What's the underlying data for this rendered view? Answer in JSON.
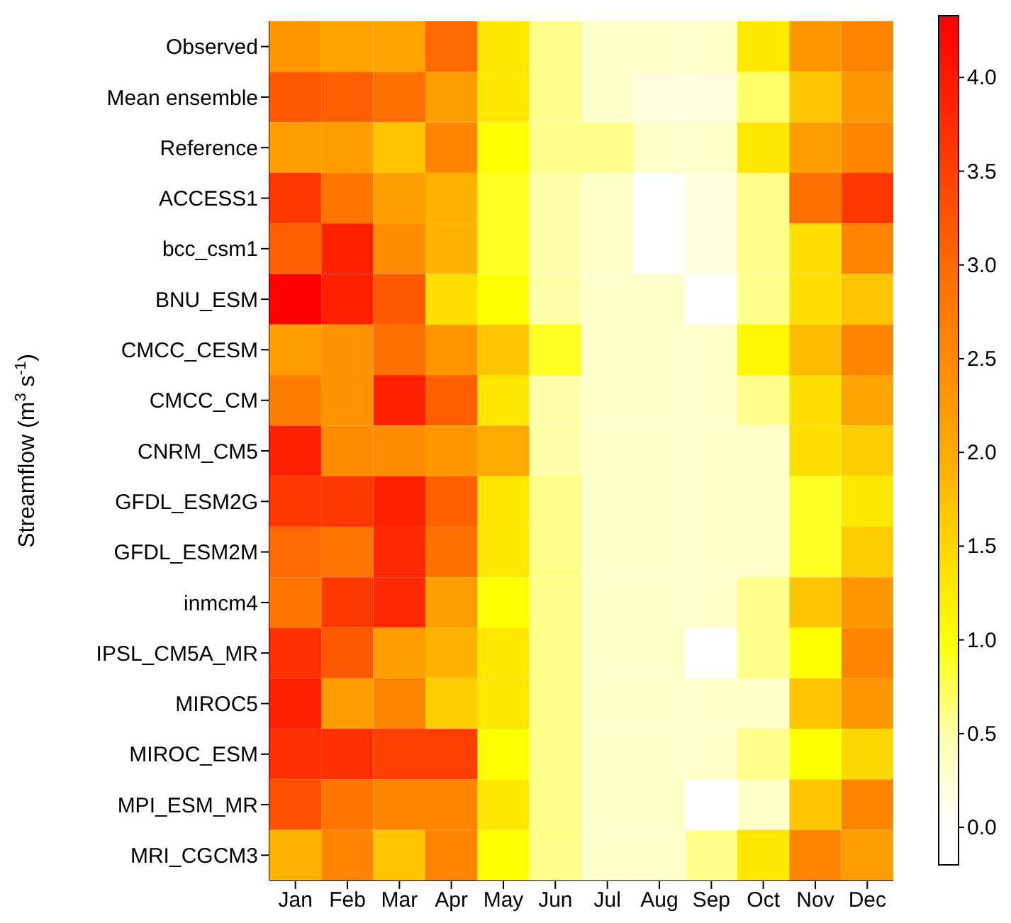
{
  "chart_data": {
    "type": "heatmap",
    "ylabel": "Streamflow (m$^{3}$ s$^{-1}$)",
    "categories": [
      "Jan",
      "Feb",
      "Mar",
      "Apr",
      "May",
      "Jun",
      "Jul",
      "Aug",
      "Sep",
      "Oct",
      "Nov",
      "Dec"
    ],
    "y_categories": [
      "Observed",
      "Mean ensemble",
      "Reference",
      "ACCESS1",
      "bcc_csm1",
      "BNU_ESM",
      "CMCC_CESM",
      "CMCC_CM",
      "CNRM_CM5",
      "GFDL_ESM2G",
      "GFDL_ESM2M",
      "inmcm4",
      "IPSL_CM5A_MR",
      "MIROC5",
      "MIROC_ESM",
      "MPI_ESM_MR",
      "MRI_CGCM3"
    ],
    "cells": [
      [
        2.3,
        2.1,
        2.1,
        3.0,
        1.3,
        0.6,
        0.3,
        0.3,
        0.3,
        1.3,
        2.3,
        2.6
      ],
      [
        3.2,
        3.1,
        2.9,
        2.2,
        1.3,
        0.6,
        0.3,
        0.2,
        0.2,
        0.7,
        1.7,
        2.3
      ],
      [
        2.2,
        2.2,
        1.7,
        2.6,
        1.0,
        0.6,
        0.6,
        0.3,
        0.3,
        1.3,
        2.2,
        2.6
      ],
      [
        3.6,
        2.8,
        2.2,
        1.9,
        0.9,
        0.5,
        0.3,
        0.0,
        0.2,
        0.6,
        2.9,
        3.6
      ],
      [
        3.1,
        3.9,
        2.5,
        1.9,
        0.9,
        0.5,
        0.3,
        0.0,
        0.2,
        0.6,
        1.4,
        2.6
      ],
      [
        4.3,
        3.9,
        3.2,
        1.4,
        1.0,
        0.5,
        0.3,
        0.3,
        0.0,
        0.6,
        1.4,
        1.7
      ],
      [
        2.2,
        2.4,
        2.9,
        2.3,
        1.7,
        0.9,
        0.3,
        0.3,
        0.3,
        1.1,
        1.8,
        2.6
      ],
      [
        2.7,
        2.4,
        3.9,
        3.1,
        1.3,
        0.5,
        0.3,
        0.3,
        0.3,
        0.6,
        1.4,
        2.1
      ],
      [
        3.9,
        2.5,
        2.5,
        2.3,
        2.0,
        0.5,
        0.3,
        0.3,
        0.3,
        0.3,
        1.4,
        1.6
      ],
      [
        3.6,
        3.6,
        3.9,
        3.1,
        1.3,
        0.6,
        0.3,
        0.3,
        0.3,
        0.3,
        0.9,
        1.3
      ],
      [
        3.0,
        2.8,
        3.8,
        2.9,
        1.3,
        0.6,
        0.3,
        0.3,
        0.3,
        0.3,
        0.9,
        1.6
      ],
      [
        2.8,
        3.6,
        3.8,
        2.2,
        1.0,
        0.6,
        0.3,
        0.3,
        0.3,
        0.6,
        1.7,
        2.3
      ],
      [
        3.7,
        3.2,
        2.2,
        1.9,
        1.3,
        0.6,
        0.3,
        0.3,
        0.0,
        0.6,
        1.0,
        2.6
      ],
      [
        3.9,
        2.2,
        2.6,
        1.6,
        1.3,
        0.6,
        0.3,
        0.3,
        0.3,
        0.3,
        1.7,
        2.3
      ],
      [
        3.7,
        3.7,
        3.5,
        3.5,
        1.0,
        0.6,
        0.3,
        0.3,
        0.3,
        0.6,
        1.0,
        1.5
      ],
      [
        3.3,
        2.8,
        2.6,
        2.6,
        1.3,
        0.6,
        0.3,
        0.3,
        0.0,
        0.3,
        1.7,
        2.6
      ],
      [
        1.9,
        2.6,
        1.7,
        2.6,
        1.0,
        0.6,
        0.3,
        0.3,
        0.6,
        1.3,
        2.6,
        2.2
      ]
    ],
    "clim": [
      -0.2,
      4.33
    ],
    "cticks": [
      {
        "value": 0,
        "label": "0.0"
      },
      {
        "value": 0.5,
        "label": "0.5"
      },
      {
        "value": 1,
        "label": "1.0"
      },
      {
        "value": 1.5,
        "label": "1.5"
      },
      {
        "value": 2,
        "label": "2.0"
      },
      {
        "value": 2.5,
        "label": "2.5"
      },
      {
        "value": 3,
        "label": "3.0"
      },
      {
        "value": 3.5,
        "label": "3.5"
      },
      {
        "value": 4,
        "label": "4.0"
      }
    ]
  }
}
